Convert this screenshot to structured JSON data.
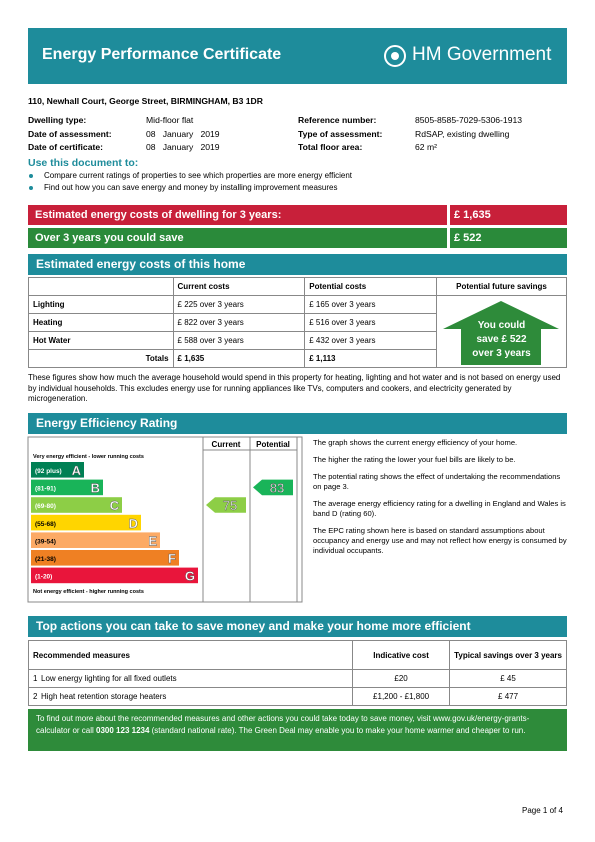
{
  "header": {
    "title": "Energy Performance Certificate",
    "brand": "HM Government"
  },
  "address": "110, Newhall Court, George Street, BIRMINGHAM, B3 1DR",
  "details": {
    "left": [
      {
        "label": "Dwelling type:",
        "value": "Mid-floor flat"
      },
      {
        "label": "Date of assessment:",
        "value": "08   January   2019"
      },
      {
        "label": "Date of certificate:",
        "value": "08   January   2019"
      }
    ],
    "right": [
      {
        "label": "Reference number:",
        "value": "8505-8585-7029-5306-1913"
      },
      {
        "label": "Type of assessment:",
        "value": "RdSAP, existing dwelling"
      },
      {
        "label": "Total floor area:",
        "value": "62 m²"
      }
    ]
  },
  "use": {
    "title": "Use this document to:",
    "bullets": [
      "Compare current ratings of properties to see which properties are more energy efficient",
      "Find out how you can save energy and money by installing improvement measures"
    ]
  },
  "summary": [
    {
      "label": "Estimated energy costs of dwelling for 3 years:",
      "value": "£ 1,635"
    },
    {
      "label": "Over 3 years you could save",
      "value": "£ 522"
    }
  ],
  "costs": {
    "title": "Estimated energy costs of this home",
    "headers": [
      "Current costs",
      "Potential costs",
      "Potential future savings"
    ],
    "rows": [
      [
        "Lighting",
        "£ 225 over 3 years",
        "£ 165 over 3 years"
      ],
      [
        "Heating",
        "£ 822 over 3 years",
        "£ 516 over 3 years"
      ],
      [
        "Hot Water",
        "£ 588 over 3 years",
        "£ 432 over 3 years"
      ]
    ],
    "totals": [
      "Totals",
      "£ 1,635",
      "£ 1,113"
    ],
    "savings": [
      "You could",
      "save £ 522",
      "over 3 years"
    ],
    "note": "These figures show how much the average household would spend in this property for heating, lighting and hot water and is not based on energy used by individual households. This excludes energy use for running appliances like TVs, computers and cookers, and electricity generated by microgeneration."
  },
  "rating": {
    "title": "Energy Efficiency Rating",
    "current_label": "Current",
    "potential_label": "Potential",
    "top_label": "Very energy efficient - lower running costs",
    "bottom_label": "Not energy efficient - higher running costs",
    "bands": [
      {
        "range": "(92 plus)",
        "letter": "A",
        "color": "#008054"
      },
      {
        "range": "(81-91)",
        "letter": "B",
        "color": "#19b459"
      },
      {
        "range": "(69-80)",
        "letter": "C",
        "color": "#8dce46"
      },
      {
        "range": "(55-68)",
        "letter": "D",
        "color": "#ffd500"
      },
      {
        "range": "(39-54)",
        "letter": "E",
        "color": "#fcaa65"
      },
      {
        "range": "(21-38)",
        "letter": "F",
        "color": "#ef8023"
      },
      {
        "range": "(1-20)",
        "letter": "G",
        "color": "#e9153b"
      }
    ],
    "current": 75,
    "potential": 83,
    "text": [
      "The graph shows the current energy efficiency of your home.",
      "The higher the rating the lower your fuel bills are likely to be.",
      "The potential rating shows the effect of undertaking the recommendations on page 3.",
      "The average energy efficiency rating for a dwelling in England and Wales is band D (rating 60).",
      "The EPC rating shown here is based on standard assumptions about occupancy and energy use and may not reflect how energy is consumed by individual occupants."
    ]
  },
  "actions": {
    "title": "Top actions you can take to save money and make your home more efficient",
    "headers": [
      "Recommended measures",
      "Indicative cost",
      "Typical savings over 3 years"
    ],
    "rows": [
      [
        "1",
        "Low energy lighting for all fixed outlets",
        "£20",
        "£ 45"
      ],
      [
        "2",
        "High heat retention storage heaters",
        "£1,200 - £1,800",
        "£ 477"
      ]
    ]
  },
  "footer": [
    "To find out more about the recommended measures and other actions you could take today to save money, visit www.gov.uk/energy-grants-calculator or call ",
    "0300 123 1234",
    " (standard national rate). The Green Deal may enable you to make your home warmer and cheaper to run."
  ],
  "page": "Page 1 of 4"
}
